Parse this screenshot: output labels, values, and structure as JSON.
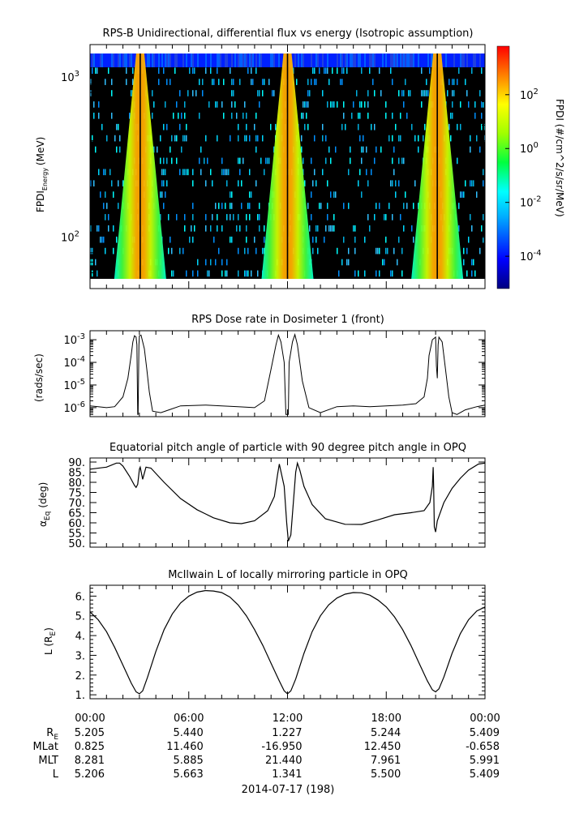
{
  "figure": {
    "date_label": "2014-07-17 (198)"
  },
  "chart_data": [
    {
      "type": "heatmap",
      "title": "RPS-B  Unidirectional, differential flux vs energy (Isotropic assumption)",
      "ylabel": "FPDI",
      "ylabel_sub": "Energy",
      "ylabel_unit": "(MeV)",
      "y_scale": "log",
      "ylim": [
        55,
        1400
      ],
      "y_ticks": [
        100,
        1000
      ],
      "y_tick_labels": [
        {
          "base": "10",
          "exp": "2"
        },
        {
          "base": "10",
          "exp": "3"
        }
      ],
      "xlim_hours": [
        0,
        24
      ],
      "colorbar": {
        "label": "FPDI (#/cm^2/s/sr/MeV)",
        "scale": "log",
        "range_exp": [
          -5.2,
          3.8
        ],
        "tick_labels": [
          {
            "base": "10",
            "exp": "2",
            "v": 2
          },
          {
            "base": "10",
            "exp": "0",
            "v": 0
          },
          {
            "base": "10",
            "exp": "-2",
            "v": -2
          },
          {
            "base": "10",
            "exp": "-4",
            "v": -4
          }
        ]
      },
      "belt_crossings_hours": [
        3.05,
        12.0,
        21.1
      ],
      "background_color": "#000000"
    },
    {
      "type": "line",
      "title": "RPS  Dose rate in Dosimeter 1 (front)",
      "ylabel": "(rads/sec)",
      "y_scale": "log",
      "ylim": [
        4e-07,
        0.0025
      ],
      "y_tick_labels": [
        {
          "base": "10",
          "exp": "-3",
          "v": 0.001
        },
        {
          "base": "10",
          "exp": "-4",
          "v": 0.0001
        },
        {
          "base": "10",
          "exp": "-5",
          "v": 1e-05
        },
        {
          "base": "10",
          "exp": "-6",
          "v": 1e-06
        }
      ],
      "x_hours": [
        0,
        0.5,
        1.0,
        1.5,
        2.0,
        2.3,
        2.5,
        2.6,
        2.7,
        2.8,
        2.85,
        2.9,
        2.92,
        2.97,
        3.0,
        3.1,
        3.3,
        3.45,
        3.6,
        3.8,
        4.3,
        4.8,
        5.5,
        7,
        8,
        9,
        10,
        10.6,
        11.0,
        11.3,
        11.45,
        11.6,
        11.8,
        11.9,
        12.0,
        12.05,
        12.1,
        12.3,
        12.45,
        12.6,
        12.9,
        13.3,
        14,
        15,
        16,
        17,
        18,
        19,
        19.8,
        20.3,
        20.5,
        20.6,
        20.8,
        21.0,
        21.05,
        21.1,
        21.15,
        21.2,
        21.4,
        21.6,
        21.8,
        22.0,
        22.3,
        22.8,
        23.5,
        24
      ],
      "series": [
        {
          "values": [
            1.2e-06,
            1.1e-06,
            1e-06,
            1.1e-06,
            3e-06,
            2e-05,
            0.0002,
            0.0008,
            0.0015,
            0.0013,
            0.0006,
            5e-07,
            5e-07,
            0.0006,
            0.0015,
            0.0016,
            0.0004,
            5e-05,
            5e-06,
            7e-07,
            6e-07,
            8e-07,
            1.2e-06,
            1.3e-06,
            1.2e-06,
            1.1e-06,
            1e-06,
            2e-06,
            5e-05,
            0.0006,
            0.0016,
            0.0008,
            0.0001,
            5e-07,
            5e-07,
            5e-07,
            0.0001,
            0.0008,
            0.0017,
            0.0006,
            1.5e-05,
            1e-06,
            6e-07,
            1.1e-06,
            1.2e-06,
            1.1e-06,
            1.2e-06,
            1.3e-06,
            1.5e-06,
            3e-06,
            2e-05,
            0.0002,
            0.001,
            0.0013,
            7e-05,
            2e-05,
            0.0006,
            0.0013,
            0.0008,
            5e-05,
            3e-06,
            6e-07,
            5e-07,
            8e-07,
            1.1e-06,
            1.3e-06
          ]
        }
      ]
    },
    {
      "type": "line",
      "title": "Equatorial pitch angle of particle with 90 degree pitch angle in OPQ",
      "ylabel_prefix": "α",
      "ylabel_sub": "Eq",
      "ylabel_unit": "(deg)",
      "ylim": [
        48,
        92
      ],
      "y_ticks": [
        50,
        55,
        60,
        65,
        70,
        75,
        80,
        85,
        90
      ],
      "y_tick_labels": [
        "50.",
        "55.",
        "60.",
        "65.",
        "70.",
        "75.",
        "80.",
        "85.",
        "90."
      ],
      "x_hours": [
        0,
        1.0,
        1.6,
        1.8,
        2.0,
        2.4,
        2.7,
        2.8,
        2.9,
        3.0,
        3.05,
        3.2,
        3.4,
        3.7,
        4.5,
        5.5,
        6.5,
        7.5,
        8.5,
        9.2,
        10,
        10.8,
        11.2,
        11.4,
        11.5,
        11.8,
        11.95,
        12.05,
        12.2,
        12.5,
        12.6,
        12.75,
        13.0,
        13.5,
        14.3,
        15.5,
        16.5,
        17.5,
        18.5,
        19.5,
        20.3,
        20.65,
        20.8,
        20.85,
        20.88,
        20.92,
        21.0,
        21.1,
        21.5,
        22.0,
        22.5,
        23.0,
        23.6,
        24
      ],
      "series": [
        {
          "values": [
            86.5,
            87.5,
            89.5,
            89.5,
            88.0,
            83.0,
            78.5,
            77.5,
            79.0,
            86.5,
            87.5,
            81.5,
            87.5,
            87.0,
            80.0,
            72.0,
            66.5,
            62.5,
            60.0,
            59.6,
            61.0,
            66.0,
            73.0,
            84.0,
            89.0,
            78.0,
            60.0,
            51.0,
            54.0,
            85.0,
            89.5,
            86.0,
            78.0,
            69.0,
            62.0,
            59.3,
            59.2,
            61.5,
            64.0,
            65.0,
            66.0,
            70.0,
            78.0,
            87.5,
            78.0,
            58.0,
            55.5,
            61.0,
            70.0,
            77.0,
            82.0,
            86.0,
            89.0,
            89.5
          ]
        }
      ]
    },
    {
      "type": "line",
      "title": "McIlwain L of locally mirroring particle in OPQ",
      "ylabel_prefix": "L (R",
      "ylabel_sub": "E",
      "ylabel_suffix": ")",
      "ylim": [
        0.8,
        6.55
      ],
      "y_ticks": [
        1,
        2,
        3,
        4,
        5,
        6
      ],
      "y_tick_labels": [
        "1.",
        "2.",
        "3.",
        "4.",
        "5.",
        "6."
      ],
      "x_hours": [
        0,
        0.5,
        1.0,
        1.5,
        2.0,
        2.5,
        2.8,
        3.0,
        3.2,
        3.5,
        4.0,
        4.5,
        5.0,
        5.5,
        6.0,
        6.5,
        7.0,
        7.5,
        8.0,
        8.5,
        9.0,
        9.5,
        10.0,
        10.5,
        11.0,
        11.5,
        11.8,
        12.0,
        12.2,
        12.5,
        13.0,
        13.5,
        14.0,
        14.5,
        15.0,
        15.5,
        16.0,
        16.5,
        17.0,
        17.5,
        18.0,
        18.5,
        19.0,
        19.5,
        20.0,
        20.5,
        20.8,
        21.0,
        21.2,
        21.5,
        22.0,
        22.5,
        23.0,
        23.5,
        24.0
      ],
      "series": [
        {
          "values": [
            5.2,
            4.8,
            4.2,
            3.4,
            2.5,
            1.6,
            1.15,
            1.05,
            1.2,
            1.9,
            3.2,
            4.3,
            5.1,
            5.65,
            6.0,
            6.2,
            6.28,
            6.26,
            6.18,
            5.95,
            5.55,
            5.0,
            4.3,
            3.5,
            2.6,
            1.7,
            1.2,
            1.05,
            1.2,
            1.8,
            3.1,
            4.2,
            5.0,
            5.55,
            5.9,
            6.1,
            6.18,
            6.17,
            6.05,
            5.8,
            5.45,
            4.95,
            4.3,
            3.5,
            2.6,
            1.7,
            1.25,
            1.15,
            1.3,
            1.9,
            3.1,
            4.1,
            4.8,
            5.25,
            5.45
          ]
        }
      ]
    }
  ],
  "x_axis": {
    "tick_labels": [
      "00:00",
      "06:00",
      "12:00",
      "18:00",
      "00:00"
    ],
    "rows": [
      {
        "label": "R",
        "label_sub": "E",
        "values": [
          "5.205",
          "5.440",
          "1.227",
          "5.244",
          "5.409"
        ]
      },
      {
        "label": "MLat",
        "values": [
          "0.825",
          "11.460",
          "-16.950",
          "12.450",
          "-0.658"
        ]
      },
      {
        "label": "MLT",
        "values": [
          "8.281",
          "5.885",
          "21.440",
          "7.961",
          "5.991"
        ]
      },
      {
        "label": "L",
        "values": [
          "5.206",
          "5.663",
          "1.341",
          "5.500",
          "5.409"
        ]
      }
    ]
  }
}
